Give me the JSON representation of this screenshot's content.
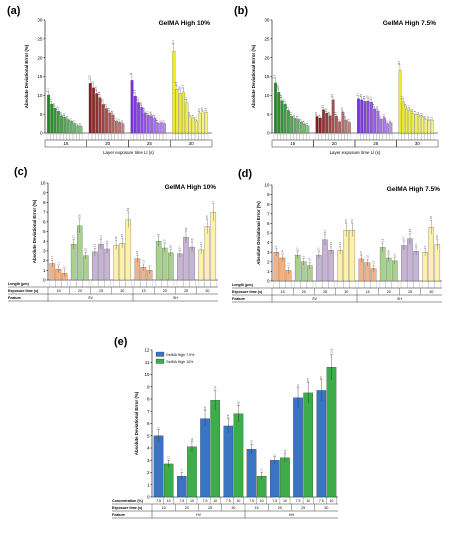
{
  "chart_data": [
    {
      "id": "a",
      "panel_label": "(a)",
      "title": "GelMA High 10%",
      "type": "bar",
      "ylabel": "Absolute Deviational Error (%)",
      "xlabel": "Layer exposure time Ll (s)",
      "ylim": [
        0,
        30
      ],
      "yticks": [
        0,
        5,
        10,
        15,
        20,
        25,
        30
      ],
      "groups": [
        "15",
        "20",
        "25",
        "30"
      ],
      "group_colors": [
        "#1e8b1e",
        "#8b1a1a",
        "#7a2ee0",
        "#ecea2a"
      ],
      "values": [
        [
          10.1,
          7.7,
          6.6,
          5.8,
          4.6,
          4.2,
          3.6,
          3.1,
          2.5,
          2.0,
          1.8
        ],
        [
          13.2,
          12.0,
          10.5,
          9.4,
          7.6,
          6.5,
          5.4,
          4.8,
          3.1,
          2.9,
          2.5
        ],
        [
          14.0,
          9.8,
          8.1,
          6.8,
          5.4,
          4.7,
          4.6,
          4.0,
          2.6,
          2.7,
          2.5
        ],
        [
          21.7,
          11.6,
          10.6,
          10.9,
          8.1,
          4.4,
          4.0,
          3.2,
          5.3,
          5.6,
          5.5
        ]
      ]
    },
    {
      "id": "b",
      "panel_label": "(b)",
      "title": "GelMA High 7.5%",
      "type": "bar",
      "ylabel": "Absolute Deviational Error (%)",
      "xlabel": "Layer exposure time Ll (s)",
      "ylim": [
        0,
        30
      ],
      "yticks": [
        0,
        5,
        10,
        15,
        20,
        25,
        30
      ],
      "groups": [
        "15",
        "20",
        "25",
        "30"
      ],
      "group_colors": [
        "#1e8b1e",
        "#8b1a1a",
        "#7a2ee0",
        "#ecea2a"
      ],
      "values": [
        [
          13.3,
          10.8,
          8.6,
          7.7,
          6.0,
          4.5,
          3.9,
          3.6,
          2.9,
          2.4,
          1.9
        ],
        [
          4.4,
          4.0,
          6.2,
          5.3,
          4.6,
          8.8,
          4.5,
          3.0,
          5.6,
          3.4,
          2.8
        ],
        [
          9.1,
          8.8,
          8.4,
          8.5,
          8.2,
          6.4,
          5.9,
          3.7,
          4.1,
          2.5,
          2.7
        ],
        [
          16.7,
          8.3,
          6.4,
          6.1,
          5.2,
          5.0,
          4.4,
          4.3,
          3.5,
          3.4,
          3.3
        ]
      ]
    },
    {
      "id": "c",
      "panel_label": "(c)",
      "title": "GelMA High 10%",
      "type": "bar",
      "ylabel": "Absolute Deviational Error (%)",
      "ylim": [
        0,
        10
      ],
      "yticks": [
        0,
        1,
        2,
        3,
        4,
        5,
        6,
        7,
        8,
        9,
        10
      ],
      "row_labels": [
        "Length (μm)",
        "Exposure time (s)",
        "Feature"
      ],
      "features": [
        "SV",
        "SH"
      ],
      "times": [
        "15",
        "20",
        "25",
        "30"
      ],
      "colors": [
        "#f4b183",
        "#a9d18e",
        "#c7b3d6",
        "#fff2a8"
      ],
      "values": [
        [
          1.7,
          1.1,
          0.7
        ],
        [
          3.7,
          5.6,
          2.5
        ],
        [
          2.9,
          3.7,
          3.2
        ],
        [
          3.6,
          3.8,
          6.2
        ],
        [
          2.2,
          1.3,
          1.0
        ],
        [
          4.0,
          3.3,
          2.8
        ],
        [
          2.7,
          4.4,
          3.4
        ],
        [
          3.1,
          5.5,
          7.0
        ]
      ]
    },
    {
      "id": "d",
      "panel_label": "(d)",
      "title": "GelMA High 7.5%",
      "type": "bar",
      "ylabel": "Absolute Deviational Error (%)",
      "ylim": [
        0,
        10
      ],
      "yticks": [
        0,
        1,
        2,
        3,
        4,
        5,
        6,
        7,
        8,
        9,
        10
      ],
      "row_labels": [
        "Length (μm)",
        "Exposure time (s)",
        "Feature"
      ],
      "features": [
        "SV",
        "SH"
      ],
      "times": [
        "15",
        "20",
        "25",
        "30"
      ],
      "colors": [
        "#f4b183",
        "#a9d18e",
        "#c7b3d6",
        "#fff2a8"
      ],
      "values": [
        [
          3.0,
          2.4,
          1.1
        ],
        [
          2.7,
          2.0,
          1.6
        ],
        [
          2.7,
          4.3,
          3.2
        ],
        [
          3.2,
          5.3,
          5.3
        ],
        [
          2.3,
          1.9,
          1.3
        ],
        [
          3.5,
          2.4,
          2.1
        ],
        [
          3.7,
          4.4,
          3.1
        ],
        [
          3.0,
          5.6,
          3.8
        ]
      ]
    },
    {
      "id": "e",
      "panel_label": "(e)",
      "type": "bar",
      "ylabel": "Absolute Deviational Error (%)",
      "ylim": [
        0,
        12
      ],
      "yticks": [
        0,
        1,
        2,
        3,
        4,
        5,
        6,
        7,
        8,
        9,
        10,
        11,
        12
      ],
      "row_labels": [
        "Concentration (%)",
        "Exposure time (s)",
        "Feature"
      ],
      "features": [
        "HV",
        "HH"
      ],
      "times": [
        "15",
        "20",
        "25",
        "30"
      ],
      "concentrations": [
        "7.5",
        "10"
      ],
      "series": [
        {
          "name": "GelMA High 7.5%",
          "color": "#3a75c4"
        },
        {
          "name": "GelMA High 10%",
          "color": "#3cad48"
        }
      ],
      "values": [
        [
          5.0,
          2.7
        ],
        [
          1.7,
          4.1
        ],
        [
          6.4,
          7.9
        ],
        [
          5.8,
          6.8
        ],
        [
          3.9,
          1.7
        ],
        [
          3.0,
          3.2
        ],
        [
          8.1,
          8.5
        ],
        [
          8.7,
          10.6
        ]
      ]
    }
  ]
}
